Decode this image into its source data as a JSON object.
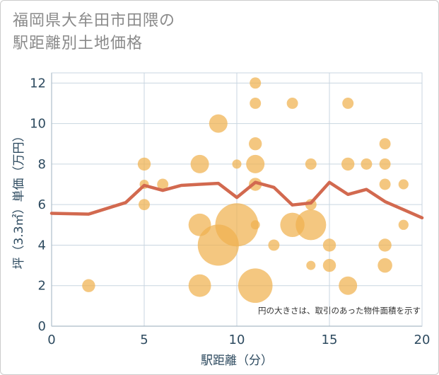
{
  "chart_data": {
    "type": "scatter",
    "title_lines": [
      "福岡県大牟田市田隈の",
      "駅距離別土地価格"
    ],
    "xlabel": "駅距離（分）",
    "ylabel": "坪（3.3㎡）単価（万円）",
    "xlim": [
      0,
      20
    ],
    "ylim": [
      0,
      12.5
    ],
    "xticks": [
      0,
      5,
      10,
      15,
      20
    ],
    "yticks": [
      0,
      2,
      4,
      6,
      8,
      10,
      12
    ],
    "grid": true,
    "note": "円の大きさは、取引のあった物件面積を示す",
    "colors": {
      "bubble": "#f0b24f",
      "line": "#d2694f",
      "grid": "#c9d6e0",
      "axis": "#2d4a5f"
    },
    "bubbles": [
      {
        "x": 2,
        "y": 2,
        "size": 2
      },
      {
        "x": 5,
        "y": 8,
        "size": 2
      },
      {
        "x": 5,
        "y": 7,
        "size": 1
      },
      {
        "x": 5,
        "y": 6,
        "size": 1.5
      },
      {
        "x": 6,
        "y": 7,
        "size": 1.5
      },
      {
        "x": 8,
        "y": 8,
        "size": 4
      },
      {
        "x": 8,
        "y": 5,
        "size": 6
      },
      {
        "x": 8,
        "y": 2,
        "size": 6
      },
      {
        "x": 9,
        "y": 10,
        "size": 4
      },
      {
        "x": 9,
        "y": 4,
        "size": 20
      },
      {
        "x": 10,
        "y": 8,
        "size": 1
      },
      {
        "x": 10,
        "y": 5,
        "size": 22
      },
      {
        "x": 11,
        "y": 12,
        "size": 1.5
      },
      {
        "x": 11,
        "y": 11,
        "size": 1.5
      },
      {
        "x": 11,
        "y": 9,
        "size": 2
      },
      {
        "x": 11,
        "y": 8,
        "size": 4
      },
      {
        "x": 11,
        "y": 7,
        "size": 2
      },
      {
        "x": 11,
        "y": 5,
        "size": 1
      },
      {
        "x": 11,
        "y": 2,
        "size": 14
      },
      {
        "x": 12,
        "y": 4,
        "size": 1.5
      },
      {
        "x": 13,
        "y": 11,
        "size": 1.5
      },
      {
        "x": 13,
        "y": 5,
        "size": 7
      },
      {
        "x": 14,
        "y": 8,
        "size": 1.5
      },
      {
        "x": 14,
        "y": 6,
        "size": 1.5
      },
      {
        "x": 14,
        "y": 5,
        "size": 11
      },
      {
        "x": 14,
        "y": 3,
        "size": 1
      },
      {
        "x": 15,
        "y": 4,
        "size": 2
      },
      {
        "x": 15,
        "y": 3,
        "size": 2
      },
      {
        "x": 16,
        "y": 11,
        "size": 1.5
      },
      {
        "x": 16,
        "y": 8,
        "size": 2
      },
      {
        "x": 16,
        "y": 2,
        "size": 4
      },
      {
        "x": 17,
        "y": 8,
        "size": 1.5
      },
      {
        "x": 18,
        "y": 9,
        "size": 1.5
      },
      {
        "x": 18,
        "y": 8,
        "size": 1.5
      },
      {
        "x": 18,
        "y": 7,
        "size": 1.5
      },
      {
        "x": 18,
        "y": 4,
        "size": 2
      },
      {
        "x": 18,
        "y": 3,
        "size": 2.5
      },
      {
        "x": 19,
        "y": 7,
        "size": 1.2
      },
      {
        "x": 19,
        "y": 5,
        "size": 1.2
      }
    ],
    "trend_line": {
      "x": [
        0,
        2,
        4,
        5,
        6,
        7,
        8,
        9,
        10,
        11,
        12,
        13,
        14,
        15,
        16,
        17,
        18,
        19,
        20
      ],
      "y": [
        5.57,
        5.53,
        6.1,
        6.95,
        6.7,
        6.95,
        7.0,
        7.05,
        6.35,
        7.1,
        6.85,
        5.98,
        6.08,
        7.1,
        6.5,
        6.75,
        6.15,
        5.75,
        5.35
      ]
    }
  }
}
